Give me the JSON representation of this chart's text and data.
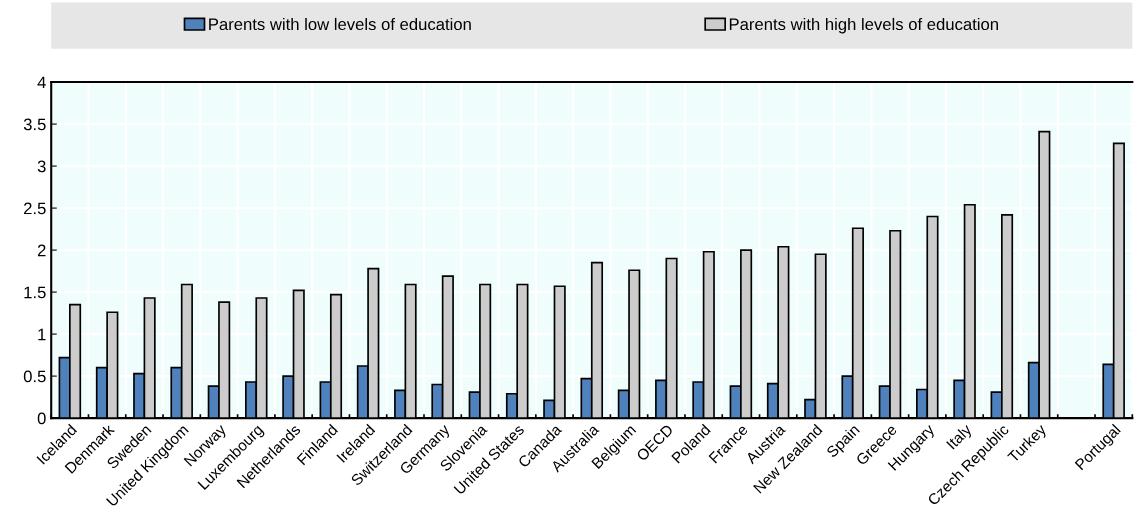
{
  "chart_data": {
    "type": "bar",
    "categories": [
      "Iceland",
      "Denmark",
      "Sweden",
      "United Kingdom",
      "Norway",
      "Luxembourg",
      "Netherlands",
      "Finland",
      "Ireland",
      "Switzerland",
      "Germany",
      "Slovenia",
      "United States",
      "Canada",
      "Australia",
      "Belgium",
      "OECD",
      "Poland",
      "France",
      "Austria",
      "New Zealand",
      "Spain",
      "Greece",
      "Hungary",
      "Italy",
      "Czech Republic",
      "Turkey",
      null,
      "Portugal"
    ],
    "series": [
      {
        "name": "Parents with low levels of education",
        "color": "#4f81bd",
        "values": [
          0.72,
          0.6,
          0.53,
          0.6,
          0.38,
          0.43,
          0.5,
          0.43,
          0.62,
          0.33,
          0.4,
          0.31,
          0.29,
          0.21,
          0.47,
          0.33,
          0.45,
          0.43,
          0.38,
          0.41,
          0.22,
          0.5,
          0.38,
          0.34,
          0.45,
          0.31,
          0.66,
          null,
          0.64
        ]
      },
      {
        "name": "Parents with high levels of education",
        "color": "#cccccc",
        "values": [
          1.35,
          1.26,
          1.43,
          1.59,
          1.38,
          1.43,
          1.52,
          1.47,
          1.78,
          1.59,
          1.69,
          1.59,
          1.59,
          1.57,
          1.85,
          1.76,
          1.9,
          1.98,
          2.0,
          2.04,
          1.95,
          2.26,
          2.23,
          2.4,
          2.54,
          2.42,
          3.41,
          null,
          3.27
        ]
      }
    ],
    "ylim": [
      0,
      4
    ],
    "yticks": [
      0,
      0.5,
      1,
      1.5,
      2,
      2.5,
      3,
      3.5,
      4
    ],
    "grid": true,
    "legend": "top"
  }
}
